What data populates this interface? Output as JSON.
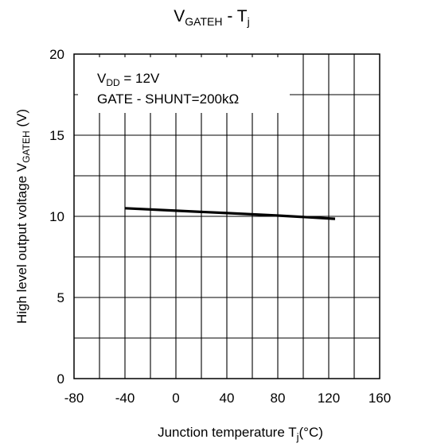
{
  "chart_data": {
    "type": "line",
    "title": {
      "main": "V",
      "sub": "GATEH",
      "rest": " - T",
      "sub2": "j"
    },
    "xlabel": {
      "main": "Junction temperature  T",
      "sub": "j",
      "rest": "(°C)"
    },
    "ylabel": {
      "main": "High level output voltage  V",
      "sub": "GATEH",
      "rest": " (V)"
    },
    "xlim": [
      -80,
      160
    ],
    "ylim": [
      0,
      20
    ],
    "x_ticks": [
      -80,
      -40,
      0,
      40,
      80,
      120,
      160
    ],
    "y_ticks": [
      0,
      5,
      10,
      15,
      20
    ],
    "grid": true,
    "annotations": [
      {
        "main": "V",
        "sub": "DD",
        "rest": " = 12V"
      },
      {
        "main": "GATE - SHUNT=200kΩ",
        "sub": "",
        "rest": ""
      }
    ],
    "series": [
      {
        "color": "#000000",
        "x": [
          -40,
          0,
          40,
          80,
          125
        ],
        "y": [
          10.5,
          10.35,
          10.2,
          10.05,
          9.85
        ]
      }
    ]
  }
}
